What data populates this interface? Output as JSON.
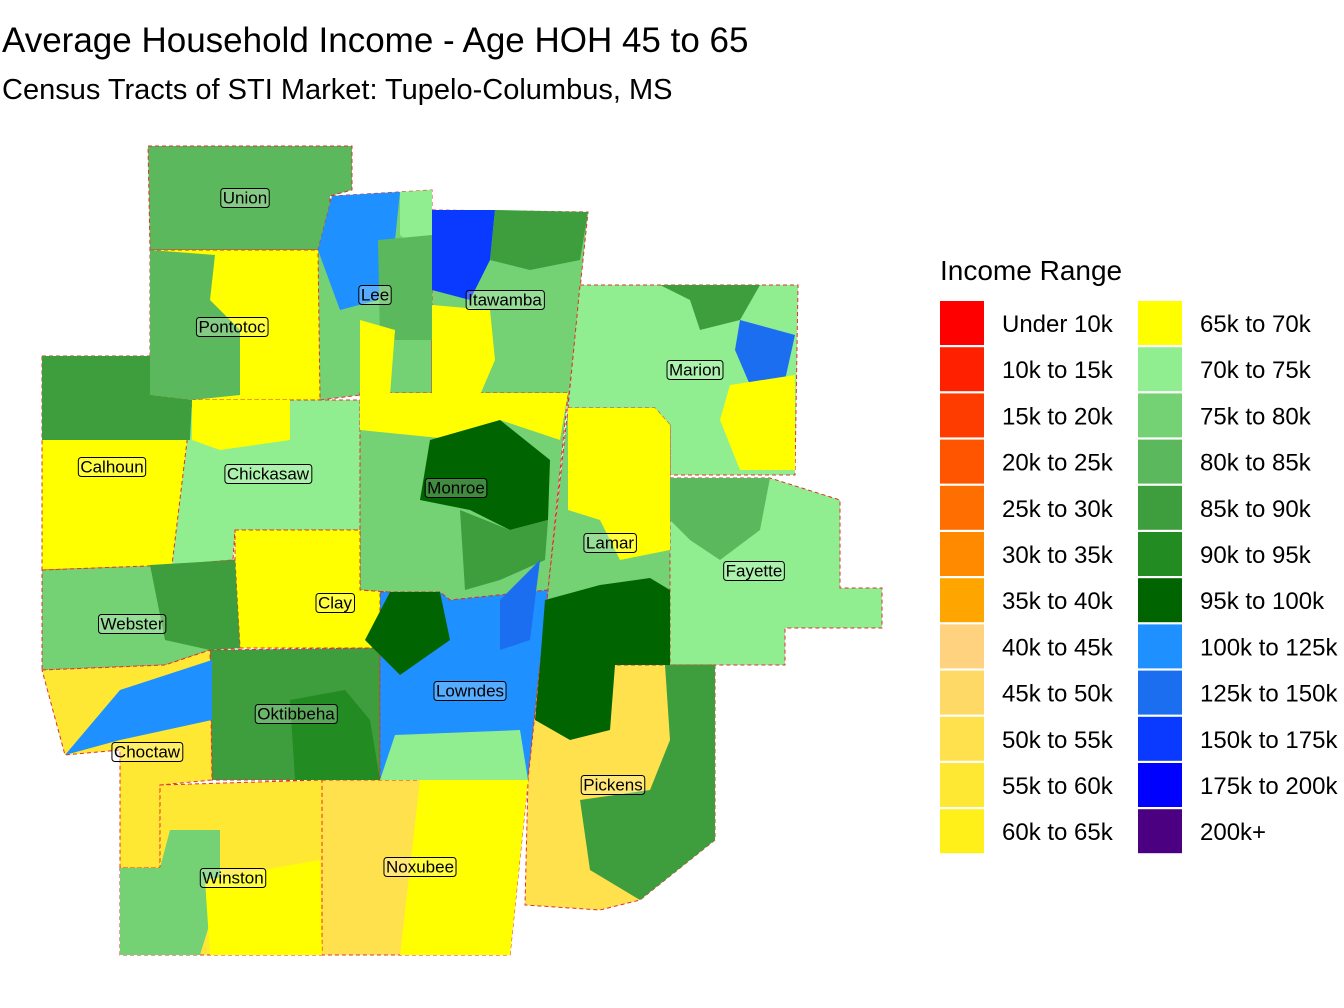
{
  "title": "Average Household Income - Age HOH 45 to 65",
  "subtitle": "Census Tracts of STI Market: Tupelo-Columbus, MS",
  "legend": {
    "title": "Income Range",
    "items": [
      {
        "label": "Under 10k",
        "color": "#ff0000"
      },
      {
        "label": "10k to 15k",
        "color": "#ff2000"
      },
      {
        "label": "15k to 20k",
        "color": "#ff3c00"
      },
      {
        "label": "20k to 25k",
        "color": "#ff5500"
      },
      {
        "label": "25k to 30k",
        "color": "#ff6e00"
      },
      {
        "label": "30k to 35k",
        "color": "#ff8a00"
      },
      {
        "label": "35k to 40k",
        "color": "#ffa500"
      },
      {
        "label": "40k to 45k",
        "color": "#ffd27f"
      },
      {
        "label": "45k to 50k",
        "color": "#ffd966"
      },
      {
        "label": "50k to 55k",
        "color": "#ffe14d"
      },
      {
        "label": "55k to 60k",
        "color": "#ffe833"
      },
      {
        "label": "60k to 65k",
        "color": "#fff01a"
      },
      {
        "label": "65k to 70k",
        "color": "#ffff00"
      },
      {
        "label": "70k to 75k",
        "color": "#90ee90"
      },
      {
        "label": "75k to 80k",
        "color": "#74d174"
      },
      {
        "label": "80k to 85k",
        "color": "#5cb85c"
      },
      {
        "label": "85k to 90k",
        "color": "#3e9e3e"
      },
      {
        "label": "90k to 95k",
        "color": "#228b22"
      },
      {
        "label": "95k to 100k",
        "color": "#006400"
      },
      {
        "label": "100k to 125k",
        "color": "#1e90ff"
      },
      {
        "label": "125k to 150k",
        "color": "#1c6ef0"
      },
      {
        "label": "150k to 175k",
        "color": "#0a3aff"
      },
      {
        "label": "175k to 200k",
        "color": "#0000ff"
      },
      {
        "label": "200k+",
        "color": "#4b0082"
      }
    ]
  },
  "counties": [
    {
      "label": "Union"
    },
    {
      "label": "Lee"
    },
    {
      "label": "Itawamba"
    },
    {
      "label": "Pontotoc"
    },
    {
      "label": "Marion"
    },
    {
      "label": "Calhoun"
    },
    {
      "label": "Chickasaw"
    },
    {
      "label": "Monroe"
    },
    {
      "label": "Lamar"
    },
    {
      "label": "Fayette"
    },
    {
      "label": "Clay"
    },
    {
      "label": "Webster"
    },
    {
      "label": "Lowndes"
    },
    {
      "label": "Oktibbeha"
    },
    {
      "label": "Choctaw"
    },
    {
      "label": "Pickens"
    },
    {
      "label": "Noxubee"
    },
    {
      "label": "Winston"
    }
  ]
}
